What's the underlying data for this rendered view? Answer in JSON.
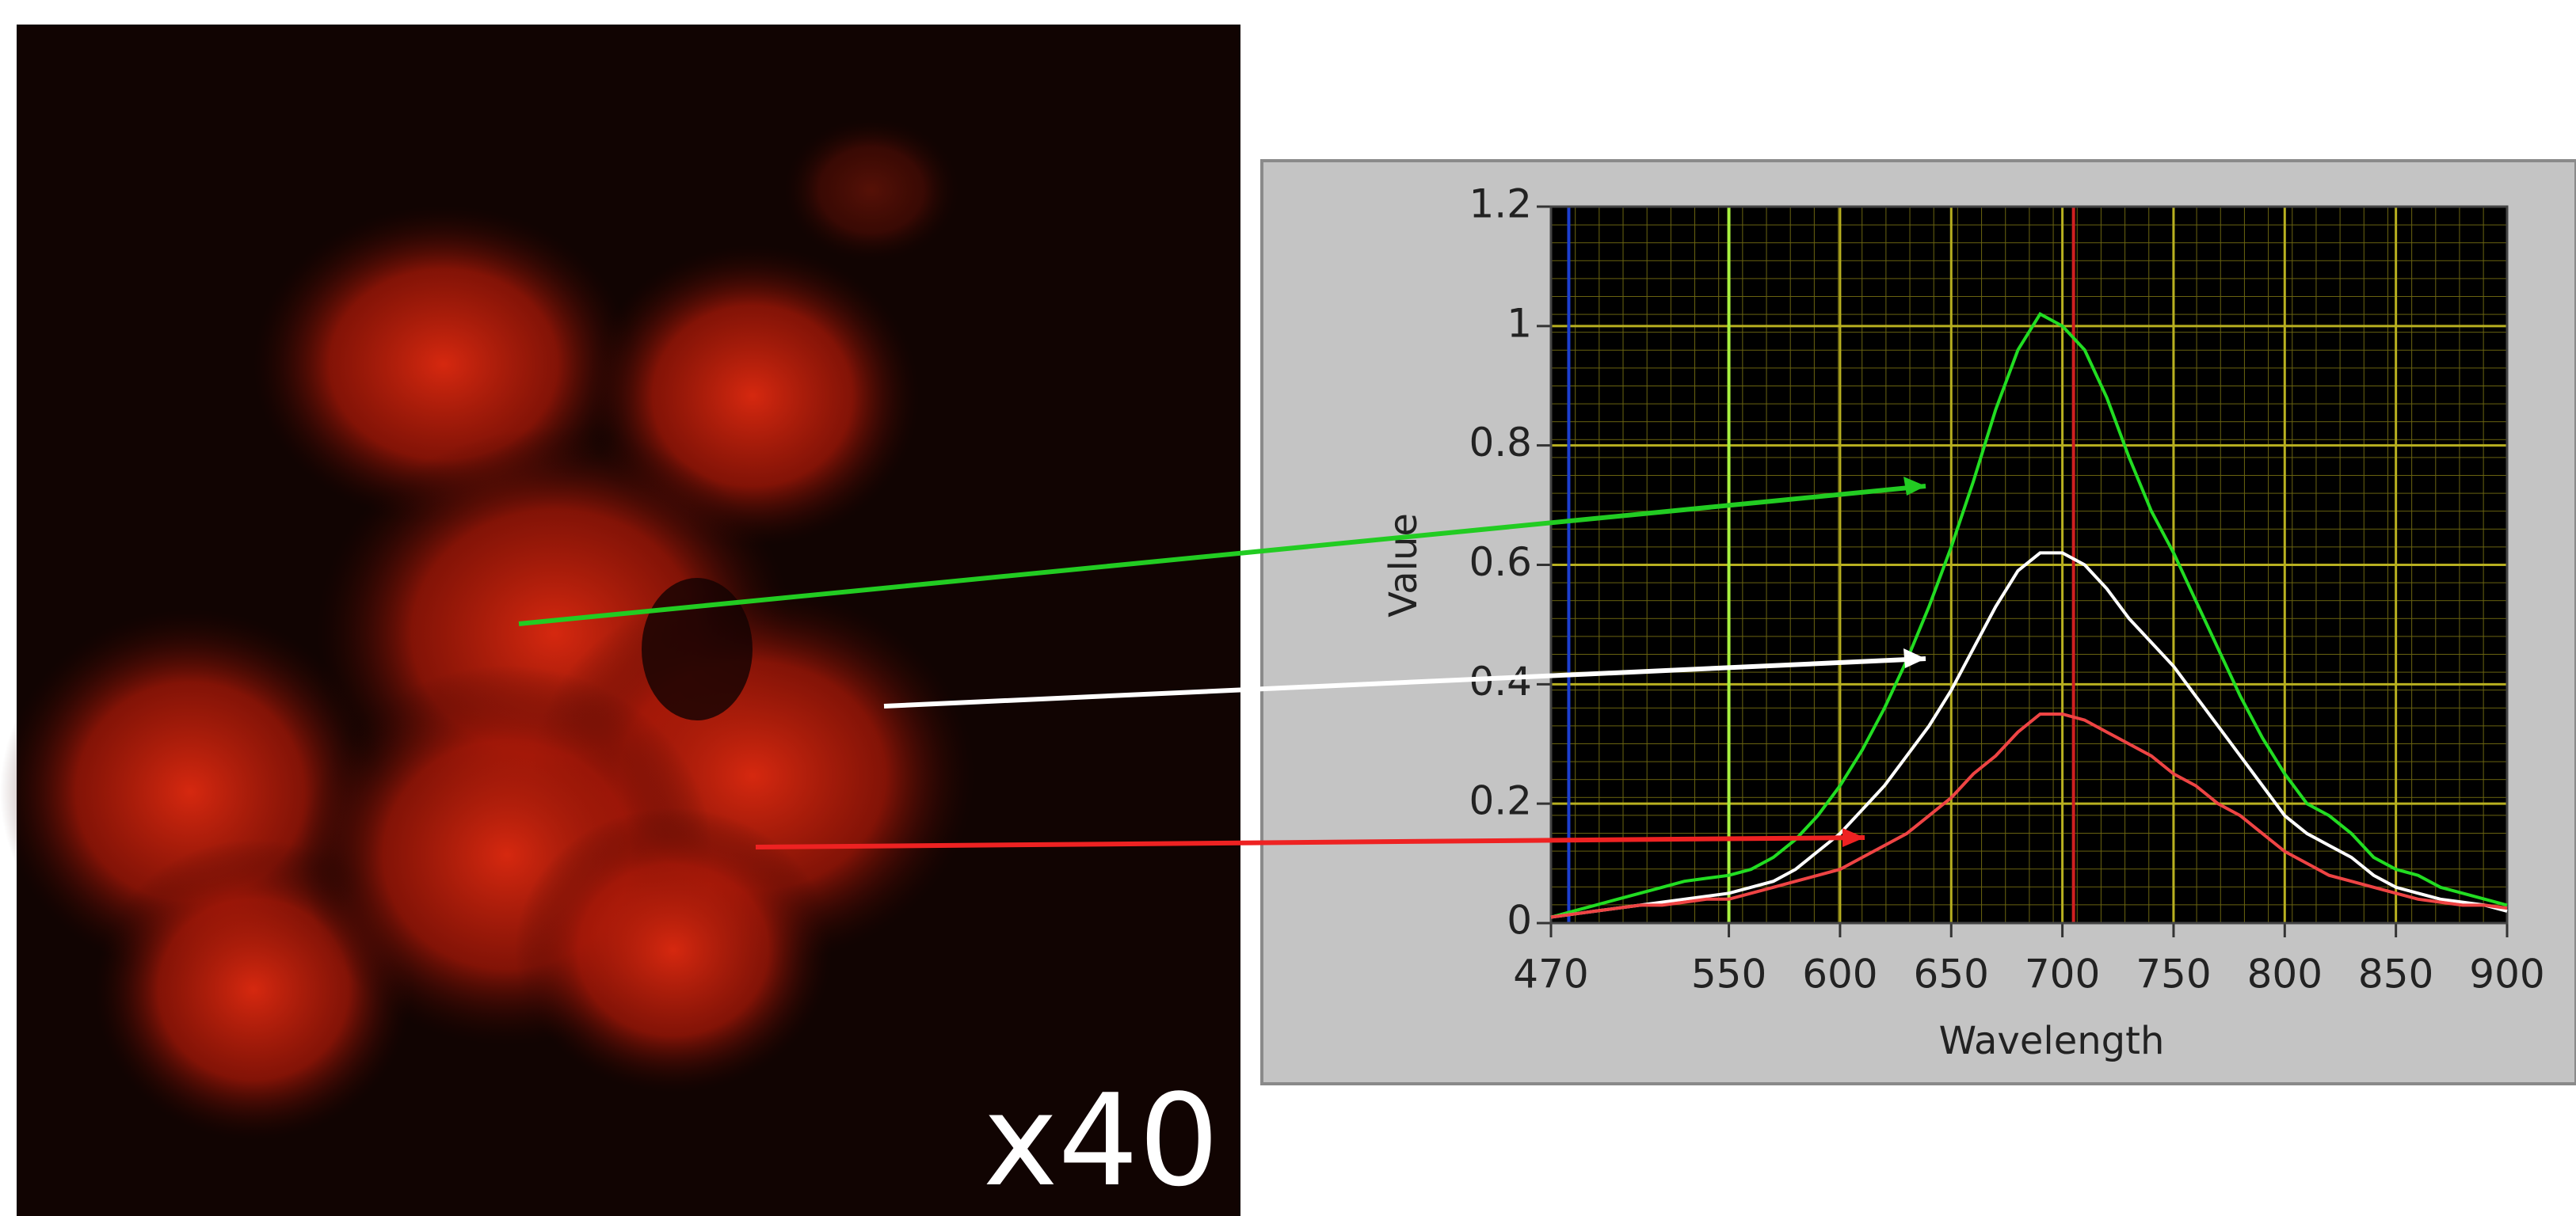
{
  "image_label": "x40",
  "chart_data": {
    "type": "line",
    "x_label": "Wavelength",
    "y_label": "Value",
    "x": [
      470,
      480,
      490,
      500,
      510,
      520,
      530,
      540,
      550,
      560,
      570,
      580,
      590,
      600,
      610,
      620,
      630,
      640,
      650,
      660,
      670,
      680,
      690,
      700,
      710,
      720,
      730,
      740,
      750,
      760,
      770,
      780,
      790,
      800,
      810,
      820,
      830,
      840,
      850,
      860,
      870,
      880,
      890,
      900
    ],
    "series": [
      {
        "color": "#22dd22",
        "values": [
          0.01,
          0.02,
          0.03,
          0.04,
          0.05,
          0.06,
          0.07,
          0.075,
          0.08,
          0.09,
          0.11,
          0.14,
          0.18,
          0.23,
          0.29,
          0.36,
          0.44,
          0.53,
          0.63,
          0.74,
          0.86,
          0.96,
          1.02,
          1.0,
          0.96,
          0.88,
          0.78,
          0.69,
          0.62,
          0.54,
          0.46,
          0.38,
          0.31,
          0.25,
          0.2,
          0.18,
          0.15,
          0.11,
          0.09,
          0.08,
          0.06,
          0.05,
          0.04,
          0.03
        ]
      },
      {
        "color": "#ffffff",
        "values": [
          0.01,
          0.015,
          0.02,
          0.025,
          0.03,
          0.035,
          0.04,
          0.045,
          0.05,
          0.06,
          0.07,
          0.09,
          0.12,
          0.15,
          0.19,
          0.23,
          0.28,
          0.33,
          0.39,
          0.46,
          0.53,
          0.59,
          0.62,
          0.62,
          0.6,
          0.56,
          0.51,
          0.47,
          0.43,
          0.38,
          0.33,
          0.28,
          0.23,
          0.18,
          0.15,
          0.13,
          0.11,
          0.08,
          0.06,
          0.05,
          0.04,
          0.035,
          0.03,
          0.02
        ]
      },
      {
        "color": "#ee4444",
        "values": [
          0.01,
          0.015,
          0.02,
          0.025,
          0.03,
          0.03,
          0.035,
          0.04,
          0.04,
          0.05,
          0.06,
          0.07,
          0.08,
          0.09,
          0.11,
          0.13,
          0.15,
          0.18,
          0.21,
          0.25,
          0.28,
          0.32,
          0.35,
          0.35,
          0.34,
          0.32,
          0.3,
          0.28,
          0.25,
          0.23,
          0.2,
          0.18,
          0.15,
          0.12,
          0.1,
          0.08,
          0.07,
          0.06,
          0.05,
          0.04,
          0.035,
          0.03,
          0.03,
          0.025
        ]
      }
    ],
    "cursors": [
      {
        "x": 478,
        "color": "#1c3fd0"
      },
      {
        "x": 550,
        "color": "#a8f040"
      },
      {
        "x": 705,
        "color": "#d02020"
      }
    ],
    "xlim": [
      470,
      900
    ],
    "xticks": [
      470,
      550,
      600,
      650,
      700,
      750,
      800,
      850,
      900
    ],
    "ylim": [
      0,
      1.2
    ],
    "yticks": [
      0,
      0.2,
      0.4,
      0.6,
      0.8,
      1,
      1.2
    ],
    "grid": true,
    "grid_color": "#b8b020",
    "plot_background": "#000000"
  }
}
